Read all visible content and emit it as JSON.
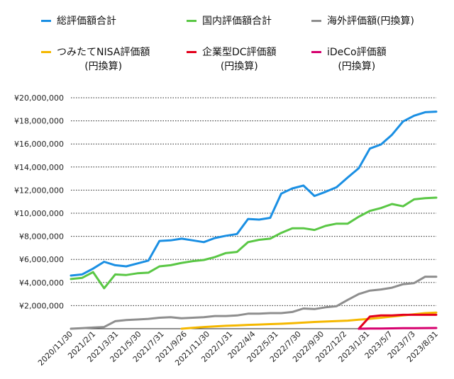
{
  "chart_data": {
    "type": "line",
    "ylim": [
      0,
      20000000
    ],
    "yticks": [
      "¥2,000,000",
      "¥4,000,000",
      "¥6,000,000",
      "¥8,000,000",
      "¥10,000,000",
      "¥12,000,000",
      "¥14,000,000",
      "¥16,000,000",
      "¥18,000,000",
      "¥20,000,000"
    ],
    "ytick_values": [
      2000000,
      4000000,
      6000000,
      8000000,
      10000000,
      12000000,
      14000000,
      16000000,
      18000000,
      20000000
    ],
    "x_tick_labels": [
      "2020/11/30",
      "2021/2/1",
      "2021/3/31",
      "2021/5/30",
      "2021/7/31",
      "2021/9/26",
      "2021/11/30",
      "2022/1/31",
      "2022/4/4",
      "2022/5/31",
      "2022/7/30",
      "2022/9/30",
      "2022/12/2",
      "2023/1/31",
      "2023/5/7",
      "2023/7/3",
      "2023/8/31"
    ],
    "grid": "horizontal-dotted",
    "legend_position": "top",
    "series": [
      {
        "name": "総評価額合計",
        "color": "#1a8fe3",
        "x_index": [
          0,
          1,
          2,
          3,
          4,
          5,
          6,
          7,
          8,
          9,
          10,
          11,
          12,
          13,
          14,
          15,
          16,
          17,
          18,
          19,
          20,
          21,
          22,
          23,
          24,
          25,
          26,
          27,
          28,
          29,
          30,
          31,
          32,
          33
        ],
        "values": [
          4600000,
          4700000,
          5200000,
          5800000,
          5500000,
          5400000,
          5650000,
          5900000,
          7600000,
          7650000,
          7800000,
          7650000,
          7500000,
          7850000,
          8050000,
          8200000,
          9500000,
          9450000,
          9600000,
          11700000,
          12150000,
          12400000,
          11500000,
          11850000,
          12250000,
          13100000,
          13900000,
          15600000,
          15950000,
          16800000,
          17950000,
          18450000,
          18750000,
          18800000
        ]
      },
      {
        "name": "国内評価額合計",
        "color": "#5ac745",
        "x_index": [
          0,
          1,
          2,
          3,
          4,
          5,
          6,
          7,
          8,
          9,
          10,
          11,
          12,
          13,
          14,
          15,
          16,
          17,
          18,
          19,
          20,
          21,
          22,
          23,
          24,
          25,
          26,
          27,
          28,
          29,
          30,
          31,
          32,
          33
        ],
        "values": [
          4300000,
          4400000,
          4900000,
          3500000,
          4700000,
          4650000,
          4800000,
          4850000,
          5400000,
          5500000,
          5700000,
          5850000,
          5950000,
          6200000,
          6550000,
          6650000,
          7500000,
          7700000,
          7800000,
          8300000,
          8700000,
          8700000,
          8550000,
          8900000,
          9100000,
          9100000,
          9700000,
          10200000,
          10450000,
          10800000,
          10600000,
          11200000,
          11300000,
          11350000
        ]
      },
      {
        "name": "海外評価額(円換算)",
        "color": "#8e8e8e",
        "x_index": [
          0,
          1,
          2,
          3,
          4,
          5,
          6,
          7,
          8,
          9,
          10,
          11,
          12,
          13,
          14,
          15,
          16,
          17,
          18,
          19,
          20,
          21,
          22,
          23,
          24,
          25,
          26,
          27,
          28,
          29,
          30,
          31,
          32,
          33
        ],
        "values": [
          0,
          50000,
          100000,
          150000,
          650000,
          750000,
          800000,
          850000,
          950000,
          1000000,
          900000,
          950000,
          1000000,
          1100000,
          1100000,
          1150000,
          1300000,
          1300000,
          1350000,
          1350000,
          1450000,
          1750000,
          1700000,
          1850000,
          1950000,
          2500000,
          3000000,
          3300000,
          3400000,
          3550000,
          3850000,
          3950000,
          4500000,
          4500000
        ]
      },
      {
        "name": "つみたてNISA評価額\n(円換算)",
        "color": "#f5b800",
        "x_index": [
          10,
          11,
          12,
          13,
          14,
          15,
          16,
          17,
          18,
          19,
          20,
          21,
          22,
          23,
          24,
          25,
          26,
          27,
          28,
          29,
          30,
          31,
          32,
          33
        ],
        "values": [
          0,
          80000,
          150000,
          200000,
          250000,
          280000,
          330000,
          360000,
          400000,
          430000,
          480000,
          530000,
          580000,
          620000,
          660000,
          700000,
          780000,
          860000,
          950000,
          1050000,
          1150000,
          1250000,
          1350000,
          1400000
        ]
      },
      {
        "name": "企業型DC評価額\n(円換算)",
        "color": "#e3001b",
        "x_index": [
          26,
          27,
          28,
          29,
          30,
          31,
          32,
          33
        ],
        "values": [
          0,
          1050000,
          1150000,
          1150000,
          1200000,
          1200000,
          1200000,
          1200000
        ]
      },
      {
        "name": "iDeCo評価額\n(円換算)",
        "color": "#d6006e",
        "x_index": [
          26,
          27,
          28,
          29,
          30,
          31,
          32,
          33
        ],
        "values": [
          0,
          10000,
          20000,
          30000,
          40000,
          50000,
          55000,
          60000
        ]
      }
    ]
  }
}
